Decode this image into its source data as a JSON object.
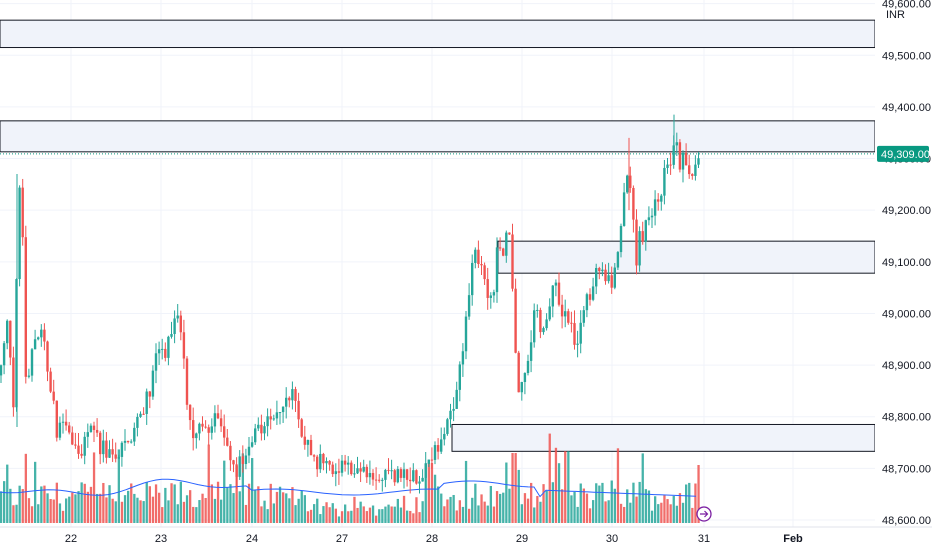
{
  "chart_data": {
    "type": "candlestick",
    "currency": "INR",
    "last_price_label": "49,309.00",
    "last_price": 49309,
    "ylim": [
      48600,
      49700
    ],
    "y_ticks": [
      49600,
      49500,
      49400,
      49300,
      49200,
      49100,
      49000,
      48900,
      48800,
      48700,
      48600
    ],
    "y_tick_labels": [
      "49,600.00",
      "49,500.00",
      "49,400.00",
      "49,300.00",
      "49,200.00",
      "49,100.00",
      "49,000.00",
      "48,900.00",
      "48,800.00",
      "48,700.00",
      "48,600.00"
    ],
    "x_tick_labels": [
      "22",
      "23",
      "24",
      "27",
      "28",
      "29",
      "30",
      "31",
      "Feb"
    ],
    "zones": [
      {
        "low": 49515,
        "high": 49568,
        "x_start_label": "22"
      },
      {
        "low": 49313,
        "high": 49373,
        "x_start_label": "22"
      },
      {
        "low": 49078,
        "high": 49140,
        "x_start_label": "28"
      },
      {
        "low": 48733,
        "high": 48785,
        "x_start_label": "28"
      }
    ],
    "colors": {
      "up": "#26a69a",
      "down": "#ef5350",
      "ma_line": "#2962ff",
      "zone_fill": "#f0f3fa",
      "zone_border": "#131722",
      "grid": "#f0f3fa",
      "price_badge": "#089981"
    }
  }
}
